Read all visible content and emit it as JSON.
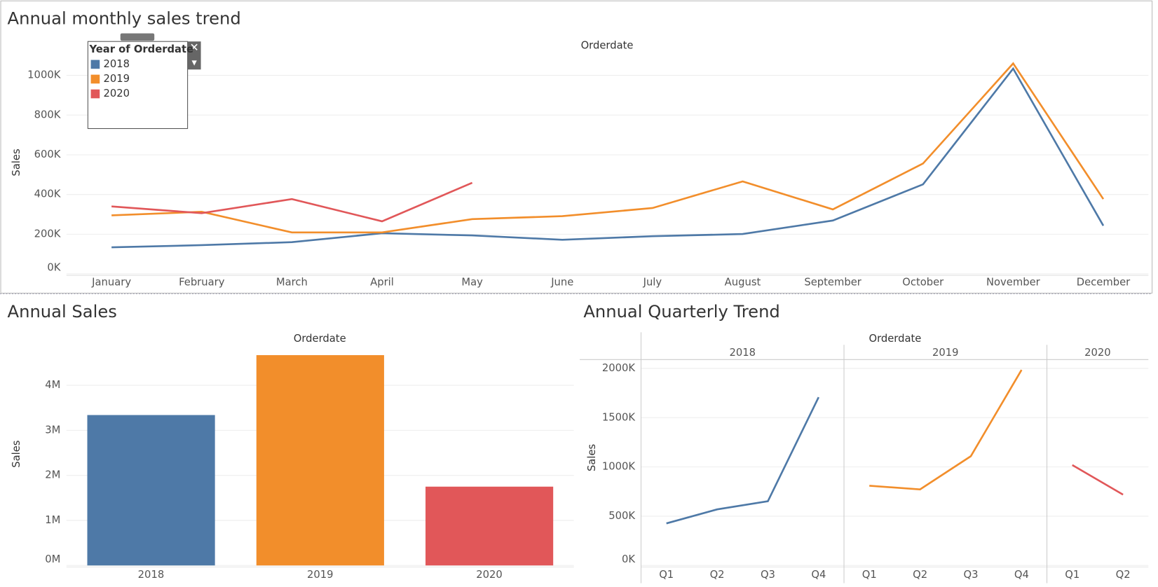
{
  "chart_data": [
    {
      "type": "line",
      "title": "Annual monthly sales trend",
      "x_label": "Orderdate",
      "y_label": "Sales",
      "legend_title": "Year of Orderdate",
      "legend": "top-left",
      "grid": true,
      "categories": [
        "January",
        "February",
        "March",
        "April",
        "May",
        "June",
        "July",
        "August",
        "September",
        "October",
        "November",
        "December"
      ],
      "series": [
        {
          "name": "2018",
          "color": "#4e79a7",
          "values": [
            134000,
            145000,
            160000,
            205000,
            194000,
            172000,
            190000,
            201000,
            269000,
            451000,
            1034000,
            243000
          ]
        },
        {
          "name": "2019",
          "color": "#f28e2b",
          "values": [
            295000,
            313000,
            209000,
            209000,
            276000,
            291000,
            332000,
            466000,
            325000,
            556000,
            1060000,
            377000
          ]
        },
        {
          "name": "2020",
          "color": "#e15759",
          "values": [
            340000,
            306000,
            377000,
            265000,
            459000,
            null,
            null,
            null,
            null,
            null,
            null,
            null
          ]
        }
      ],
      "ylim": [
        0,
        1100000
      ],
      "yticks": [
        {
          "value": 0,
          "label": "0K"
        },
        {
          "value": 200000,
          "label": "200K"
        },
        {
          "value": 400000,
          "label": "400K"
        },
        {
          "value": 600000,
          "label": "600K"
        },
        {
          "value": 800000,
          "label": "800K"
        },
        {
          "value": 1000000,
          "label": "1000K"
        }
      ]
    },
    {
      "type": "bar",
      "title": "Annual Sales",
      "x_label": "Orderdate",
      "y_label": "Sales",
      "grid": true,
      "categories": [
        "2018",
        "2019",
        "2020"
      ],
      "values": [
        3340000,
        4670000,
        1750000
      ],
      "colors": [
        "#4e79a7",
        "#f28e2b",
        "#e15759"
      ],
      "ylim": [
        0,
        4900000
      ],
      "yticks": [
        {
          "value": 0,
          "label": "0M"
        },
        {
          "value": 1000000,
          "label": "1M"
        },
        {
          "value": 2000000,
          "label": "2M"
        },
        {
          "value": 3000000,
          "label": "3M"
        },
        {
          "value": 4000000,
          "label": "4M"
        }
      ]
    },
    {
      "type": "faceted_line",
      "title": "Annual Quarterly Trend",
      "x_label": "Orderdate",
      "y_label": "Sales",
      "grid": true,
      "series": [
        {
          "name": "2018",
          "color": "#4e79a7",
          "categories": [
            "Q1",
            "Q2",
            "Q3",
            "Q4"
          ],
          "values": [
            427000,
            569000,
            652000,
            1708000
          ]
        },
        {
          "name": "2019",
          "color": "#f28e2b",
          "categories": [
            "Q1",
            "Q2",
            "Q3",
            "Q4"
          ],
          "values": [
            809000,
            772000,
            1109000,
            1985000
          ]
        },
        {
          "name": "2020",
          "color": "#e15759",
          "categories": [
            "Q1",
            "Q2"
          ],
          "values": [
            1019000,
            719000
          ]
        }
      ],
      "ylim": [
        0,
        2090000
      ],
      "yticks": [
        {
          "value": 0,
          "label": "0K"
        },
        {
          "value": 500000,
          "label": "500K"
        },
        {
          "value": 1000000,
          "label": "1000K"
        },
        {
          "value": 1500000,
          "label": "1500K"
        },
        {
          "value": 2000000,
          "label": "2000K"
        }
      ]
    }
  ]
}
